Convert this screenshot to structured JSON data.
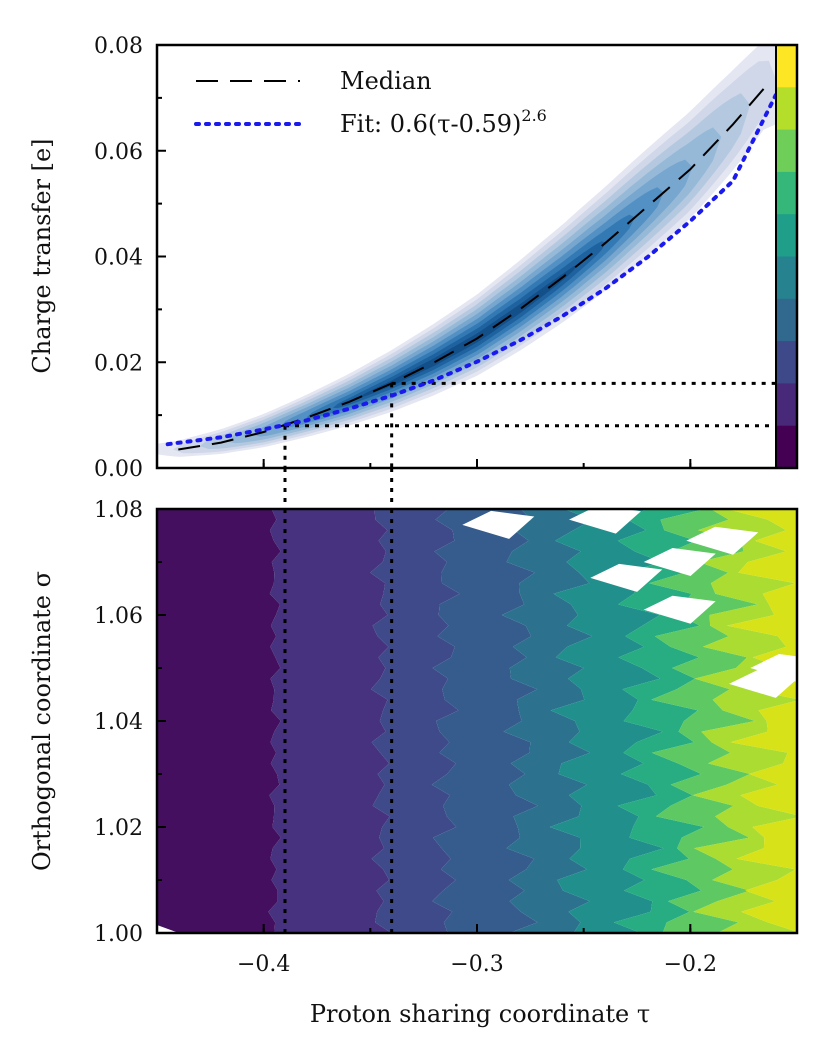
{
  "chart_data": [
    {
      "type": "contour",
      "name": "top-panel",
      "ylabel": "Charge transfer [e]",
      "xlim": [
        -0.45,
        -0.15
      ],
      "ylim": [
        0.0,
        0.08
      ],
      "yticks": [
        0.0,
        0.02,
        0.04,
        0.06,
        0.08
      ],
      "ytick_labels": [
        "0.00",
        "0.02",
        "0.04",
        "0.06",
        "0.08"
      ],
      "xticks": [
        -0.4,
        -0.3,
        -0.2
      ],
      "colorbar_colors": [
        "#fde725",
        "#b5de2b",
        "#6ece58",
        "#35b779",
        "#1f9e89",
        "#26828e",
        "#31688e",
        "#3e4989",
        "#482878",
        "#440154"
      ],
      "density_colors": [
        "#e4e6f2",
        "#cfd7e9",
        "#b4c9e0",
        "#97b9d8",
        "#77a6cf",
        "#5390c3",
        "#3379b4",
        "#1f62a0",
        "#134f89"
      ],
      "legend": {
        "position": "top-left",
        "entries": [
          "Median",
          "Fit: 0.6(τ-0.59)^2.6"
        ]
      },
      "legend_text": {
        "median": "Median",
        "fit_prefix": "Fit: 0.6(τ-0.59)",
        "fit_exponent": "2.6"
      },
      "series": [
        {
          "name": "Median",
          "style": "dashed",
          "color": "#000000",
          "x": [
            -0.44,
            -0.42,
            -0.4,
            -0.38,
            -0.36,
            -0.34,
            -0.32,
            -0.3,
            -0.28,
            -0.26,
            -0.24,
            -0.22,
            -0.2,
            -0.18,
            -0.165
          ],
          "y": [
            0.0035,
            0.0048,
            0.0068,
            0.0095,
            0.0125,
            0.016,
            0.02,
            0.0245,
            0.03,
            0.036,
            0.0425,
            0.0495,
            0.0565,
            0.065,
            0.072
          ]
        },
        {
          "name": "Fit: 0.6(τ-0.59)^2.6",
          "style": "dotted",
          "color": "#1a1aee",
          "x": [
            -0.445,
            -0.42,
            -0.4,
            -0.38,
            -0.36,
            -0.34,
            -0.32,
            -0.3,
            -0.28,
            -0.26,
            -0.24,
            -0.22,
            -0.2,
            -0.18,
            -0.16
          ],
          "y": [
            0.0045,
            0.0058,
            0.0073,
            0.009,
            0.0112,
            0.0137,
            0.0166,
            0.0201,
            0.0241,
            0.0287,
            0.0339,
            0.0399,
            0.0467,
            0.0543,
            0.0705
          ]
        }
      ],
      "reference_lines": [
        {
          "tau": -0.39,
          "charge": 0.008
        },
        {
          "tau": -0.34,
          "charge": 0.016
        }
      ]
    },
    {
      "type": "contour",
      "name": "bottom-panel",
      "xlabel": "Proton sharing coordinate τ",
      "ylabel": "Orthogonal coordinate σ",
      "xlim": [
        -0.45,
        -0.15
      ],
      "ylim": [
        1.0,
        1.08
      ],
      "xticks": [
        -0.4,
        -0.3,
        -0.2
      ],
      "xtick_labels": [
        "−0.4",
        "−0.3",
        "−0.2"
      ],
      "yticks": [
        1.0,
        1.02,
        1.04,
        1.06,
        1.08
      ],
      "ytick_labels": [
        "1.00",
        "1.02",
        "1.04",
        "1.06",
        "1.08"
      ],
      "band_boundaries_tau": [
        -0.395,
        -0.345,
        -0.315,
        -0.28,
        -0.255,
        -0.225,
        -0.205,
        -0.185,
        -0.165
      ],
      "band_colors": [
        "#440f5e",
        "#46327e",
        "#3f4a8a",
        "#365c8d",
        "#2c718e",
        "#21908d",
        "#27ad81",
        "#5ec962",
        "#aadc32",
        "#d8e219"
      ],
      "missing_regions": [
        {
          "tau": -0.29,
          "sigma": 1.077
        },
        {
          "tau": -0.24,
          "sigma": 1.078
        },
        {
          "tau": -0.23,
          "sigma": 1.067
        },
        {
          "tau": -0.205,
          "sigma": 1.07
        },
        {
          "tau": -0.185,
          "sigma": 1.074
        },
        {
          "tau": -0.205,
          "sigma": 1.061
        },
        {
          "tau": -0.165,
          "sigma": 1.047
        },
        {
          "tau": -0.155,
          "sigma": 1.05
        }
      ]
    }
  ]
}
